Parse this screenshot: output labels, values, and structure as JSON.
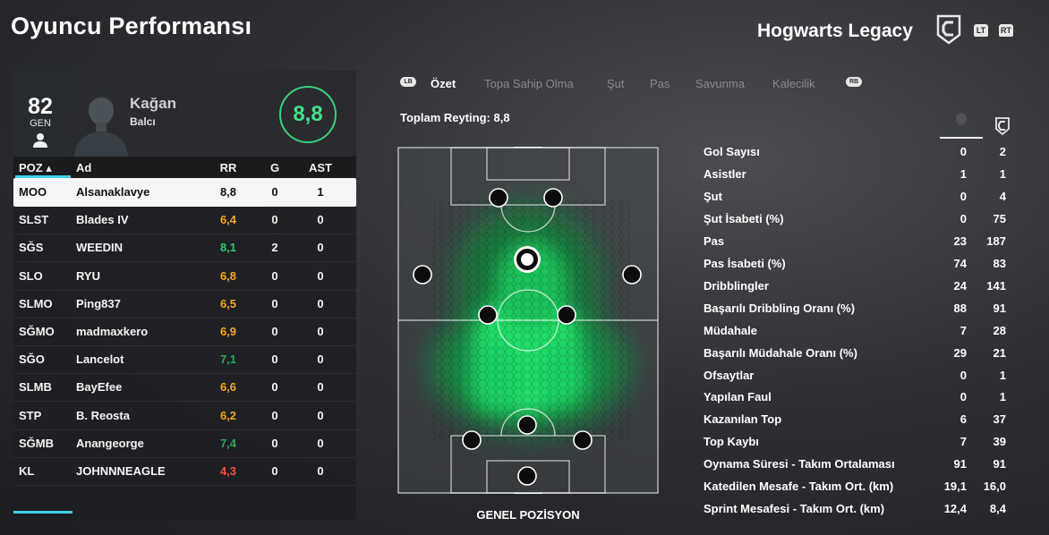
{
  "header": {
    "title": "Oyuncu Performansı",
    "team_name": "Hogwarts Legacy",
    "lt_label": "LT",
    "rt_label": "RT"
  },
  "player": {
    "overall": "82",
    "overall_label": "GEN",
    "first_name": "Kağan",
    "last_name": "Balcı",
    "match_rating": "8,8"
  },
  "table": {
    "headers": {
      "pos": "POZ ▴",
      "name": "Ad",
      "rr": "RR",
      "g": "G",
      "ast": "AST"
    },
    "rows": [
      {
        "pos": "MOO",
        "name": "Alsanaklavye",
        "rr": "8,8",
        "g": "0",
        "ast": "1",
        "color": "#111111"
      },
      {
        "pos": "SLST",
        "name": "Blades IV",
        "rr": "6,4",
        "g": "0",
        "ast": "0",
        "color": "#f5a623"
      },
      {
        "pos": "SĞS",
        "name": "WEEDIN",
        "rr": "8,1",
        "g": "2",
        "ast": "0",
        "color": "#35c86e"
      },
      {
        "pos": "SLO",
        "name": "RYU",
        "rr": "6,8",
        "g": "0",
        "ast": "0",
        "color": "#f5a623"
      },
      {
        "pos": "SLMO",
        "name": "Ping837",
        "rr": "6,5",
        "g": "0",
        "ast": "0",
        "color": "#f5a623"
      },
      {
        "pos": "SĞMO",
        "name": "madmaxkero",
        "rr": "6,9",
        "g": "0",
        "ast": "0",
        "color": "#f5a623"
      },
      {
        "pos": "SĞO",
        "name": "Lancelot",
        "rr": "7,1",
        "g": "0",
        "ast": "0",
        "color": "#2ea85a"
      },
      {
        "pos": "SLMB",
        "name": "BayEfee",
        "rr": "6,6",
        "g": "0",
        "ast": "0",
        "color": "#f5a623"
      },
      {
        "pos": "STP",
        "name": "B. Reosta",
        "rr": "6,2",
        "g": "0",
        "ast": "0",
        "color": "#f5a623"
      },
      {
        "pos": "SĞMB",
        "name": "Anangeorge",
        "rr": "7,4",
        "g": "0",
        "ast": "0",
        "color": "#2ea85a"
      },
      {
        "pos": "KL",
        "name": "JOHNNNEAGLE",
        "rr": "4,3",
        "g": "0",
        "ast": "0",
        "color": "#ff4a3a"
      }
    ]
  },
  "tabs": {
    "lb_label": "LB",
    "rb_label": "RB",
    "items": [
      "Özet",
      "Topa Sahip Olma",
      "Şut",
      "Pas",
      "Savunma",
      "Kalecilik"
    ],
    "active_index": 0
  },
  "summary": {
    "total_rating": "Toplam Reyting: 8,8",
    "pitch_caption": "GENEL POZİSYON"
  },
  "stats": [
    {
      "label": "Gol Sayısı",
      "player": "0",
      "team": "2"
    },
    {
      "label": "Asistler",
      "player": "1",
      "team": "1"
    },
    {
      "label": "Şut",
      "player": "0",
      "team": "4"
    },
    {
      "label": "Şut İsabeti (%)",
      "player": "0",
      "team": "75"
    },
    {
      "label": "Pas",
      "player": "23",
      "team": "187"
    },
    {
      "label": "Pas İsabeti (%)",
      "player": "74",
      "team": "83"
    },
    {
      "label": "Dribblingler",
      "player": "24",
      "team": "141"
    },
    {
      "label": "Başarılı Dribbling Oranı (%)",
      "player": "88",
      "team": "91"
    },
    {
      "label": "Müdahale",
      "player": "7",
      "team": "28"
    },
    {
      "label": "Başarılı Müdahale Oranı (%)",
      "player": "29",
      "team": "21"
    },
    {
      "label": "Ofsaytlar",
      "player": "0",
      "team": "1"
    },
    {
      "label": "Yapılan Faul",
      "player": "0",
      "team": "1"
    },
    {
      "label": "Kazanılan Top",
      "player": "6",
      "team": "37"
    },
    {
      "label": "Top Kaybı",
      "player": "7",
      "team": "39"
    },
    {
      "label": "Oynama Süresi - Takım Ortalaması",
      "player": "91",
      "team": "91"
    },
    {
      "label": "Katedilen Mesafe - Takım Ort. (km)",
      "player": "19,1",
      "team": "16,0"
    },
    {
      "label": "Sprint Mesafesi - Takım Ort. (km)",
      "player": "12,4",
      "team": "8,4"
    }
  ],
  "colors": {
    "accent": "#3ed0e8",
    "rating_green": "#46e08a",
    "heatmap": "#22e06a"
  }
}
